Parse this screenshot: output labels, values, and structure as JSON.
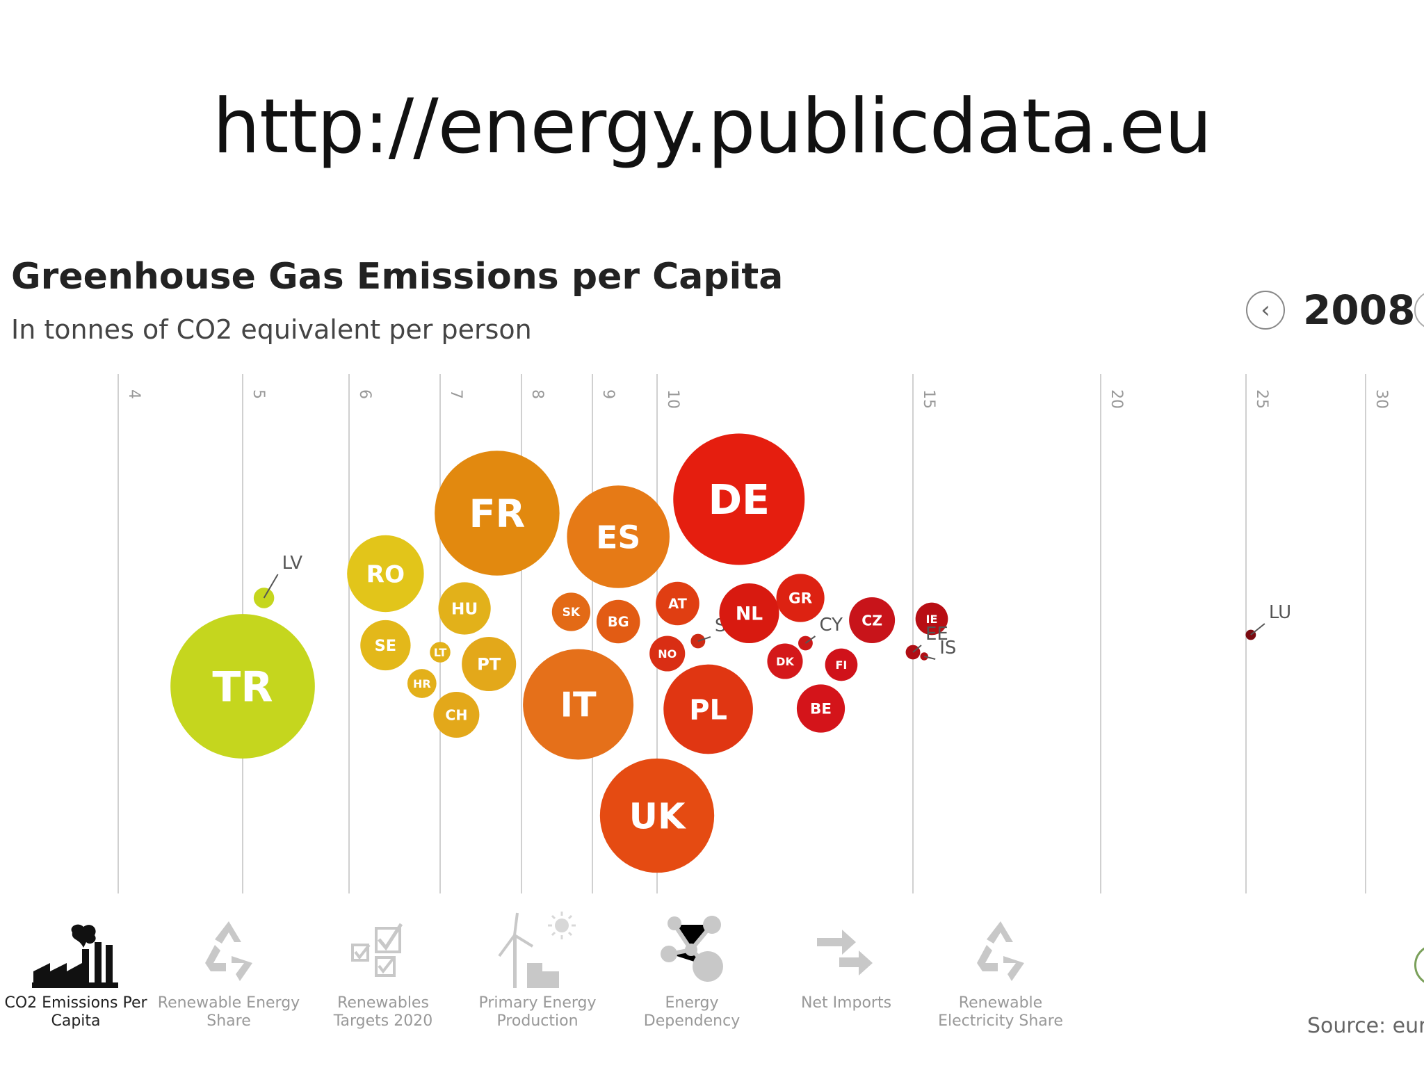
{
  "slide": {
    "title": "http://energy.publicdata.eu"
  },
  "header": {
    "title": "Greenhouse Gas Emissions per Capita",
    "subtitle": "In tonnes of CO2 equivalent per person",
    "year": "2008",
    "prev_icon": "chevron-left-icon",
    "next_icon": "chevron-right-icon"
  },
  "chart_data": {
    "type": "scatter",
    "title": "Greenhouse Gas Emissions per Capita",
    "subtitle": "In tonnes of CO2 equivalent per person",
    "x_ticks": [
      4,
      5,
      6,
      7,
      8,
      9,
      10,
      15,
      20,
      25,
      30
    ],
    "xlim": [
      3.6,
      31
    ],
    "grid": true,
    "points": [
      {
        "label": "TR",
        "x": 5.0,
        "size": 9.9,
        "color": "#c5d61e",
        "label_inside": true
      },
      {
        "label": "LV",
        "x": 5.2,
        "size": 0.2,
        "color": "#c5d61e",
        "label_inside": false
      },
      {
        "label": "RO",
        "x": 6.4,
        "size": 2.8,
        "color": "#e2c51a",
        "label_inside": true
      },
      {
        "label": "SE",
        "x": 6.4,
        "size": 1.2,
        "color": "#e3b81a",
        "label_inside": true
      },
      {
        "label": "HR",
        "x": 6.8,
        "size": 0.4,
        "color": "#e3b01a",
        "label_inside": true
      },
      {
        "label": "HU",
        "x": 7.3,
        "size": 1.3,
        "color": "#e2b11a",
        "label_inside": true
      },
      {
        "label": "LT",
        "x": 7.0,
        "size": 0.2,
        "color": "#e2b11a",
        "label_inside": true
      },
      {
        "label": "PT",
        "x": 7.6,
        "size": 1.4,
        "color": "#e3a81a",
        "label_inside": true
      },
      {
        "label": "CH",
        "x": 7.2,
        "size": 1.0,
        "color": "#e3a81a",
        "label_inside": true
      },
      {
        "label": "FR",
        "x": 7.7,
        "size": 7.4,
        "color": "#e2890f",
        "label_inside": true
      },
      {
        "label": "ES",
        "x": 9.4,
        "size": 5.0,
        "color": "#e67a16",
        "label_inside": true
      },
      {
        "label": "IT",
        "x": 8.8,
        "size": 5.8,
        "color": "#e5701a",
        "label_inside": true
      },
      {
        "label": "SK",
        "x": 8.7,
        "size": 0.7,
        "color": "#e36a16",
        "label_inside": true
      },
      {
        "label": "BG",
        "x": 9.4,
        "size": 0.9,
        "color": "#e25c14",
        "label_inside": true
      },
      {
        "label": "UK",
        "x": 10.0,
        "size": 6.2,
        "color": "#e54b12",
        "label_inside": true
      },
      {
        "label": "AT",
        "x": 10.4,
        "size": 0.9,
        "color": "#e03e12",
        "label_inside": true
      },
      {
        "label": "NO",
        "x": 10.2,
        "size": 0.6,
        "color": "#d92e14",
        "label_inside": true
      },
      {
        "label": "SI",
        "x": 10.8,
        "size": 0.1,
        "color": "#cc2a14",
        "label_inside": false
      },
      {
        "label": "PL",
        "x": 11.0,
        "size": 3.8,
        "color": "#e03612",
        "label_inside": true
      },
      {
        "label": "DE",
        "x": 11.6,
        "size": 8.2,
        "color": "#e51e0f",
        "label_inside": true
      },
      {
        "label": "NL",
        "x": 11.8,
        "size": 1.7,
        "color": "#d81a10",
        "label_inside": true
      },
      {
        "label": "GR",
        "x": 12.8,
        "size": 1.1,
        "color": "#dd2212",
        "label_inside": true
      },
      {
        "label": "DK",
        "x": 12.5,
        "size": 0.6,
        "color": "#d4181a",
        "label_inside": true
      },
      {
        "label": "BE",
        "x": 13.2,
        "size": 1.1,
        "color": "#d4141a",
        "label_inside": true
      },
      {
        "label": "CY",
        "x": 12.9,
        "size": 0.1,
        "color": "#cc1818",
        "label_inside": false
      },
      {
        "label": "FI",
        "x": 13.6,
        "size": 0.5,
        "color": "#d0121a",
        "label_inside": true
      },
      {
        "label": "CZ",
        "x": 14.2,
        "size": 1.0,
        "color": "#c8141a",
        "label_inside": true
      },
      {
        "label": "IE",
        "x": 15.5,
        "size": 0.5,
        "color": "#b80e14",
        "label_inside": true
      },
      {
        "label": "EE",
        "x": 15.0,
        "size": 0.1,
        "color": "#b00e14",
        "label_inside": false
      },
      {
        "label": "IS",
        "x": 15.3,
        "size": 0.03,
        "color": "#b00e14",
        "label_inside": false
      },
      {
        "label": "LU",
        "x": 25.2,
        "size": 0.05,
        "color": "#7a0a10",
        "label_inside": false
      }
    ]
  },
  "toolbar": {
    "items": [
      {
        "label1": "CO2 Emissions Per",
        "label2": "Capita",
        "icon": "factory-icon",
        "active": true
      },
      {
        "label1": "Renewable Energy",
        "label2": "Share",
        "icon": "recycle-icon",
        "active": false
      },
      {
        "label1": "Renewables",
        "label2": "Targets 2020",
        "icon": "checklist-icon",
        "active": false
      },
      {
        "label1": "Primary Energy",
        "label2": "Production",
        "icon": "wind-sun-icon",
        "active": false
      },
      {
        "label1": "Energy",
        "label2": "Dependency",
        "icon": "network-icon",
        "active": false
      },
      {
        "label1": "Net Imports",
        "label2": "",
        "icon": "import-arrows-icon",
        "active": false
      },
      {
        "label1": "Renewable",
        "label2": "Electricity Share",
        "icon": "recycle-icon",
        "active": false
      }
    ]
  },
  "footer": {
    "source": "Source: euro"
  }
}
